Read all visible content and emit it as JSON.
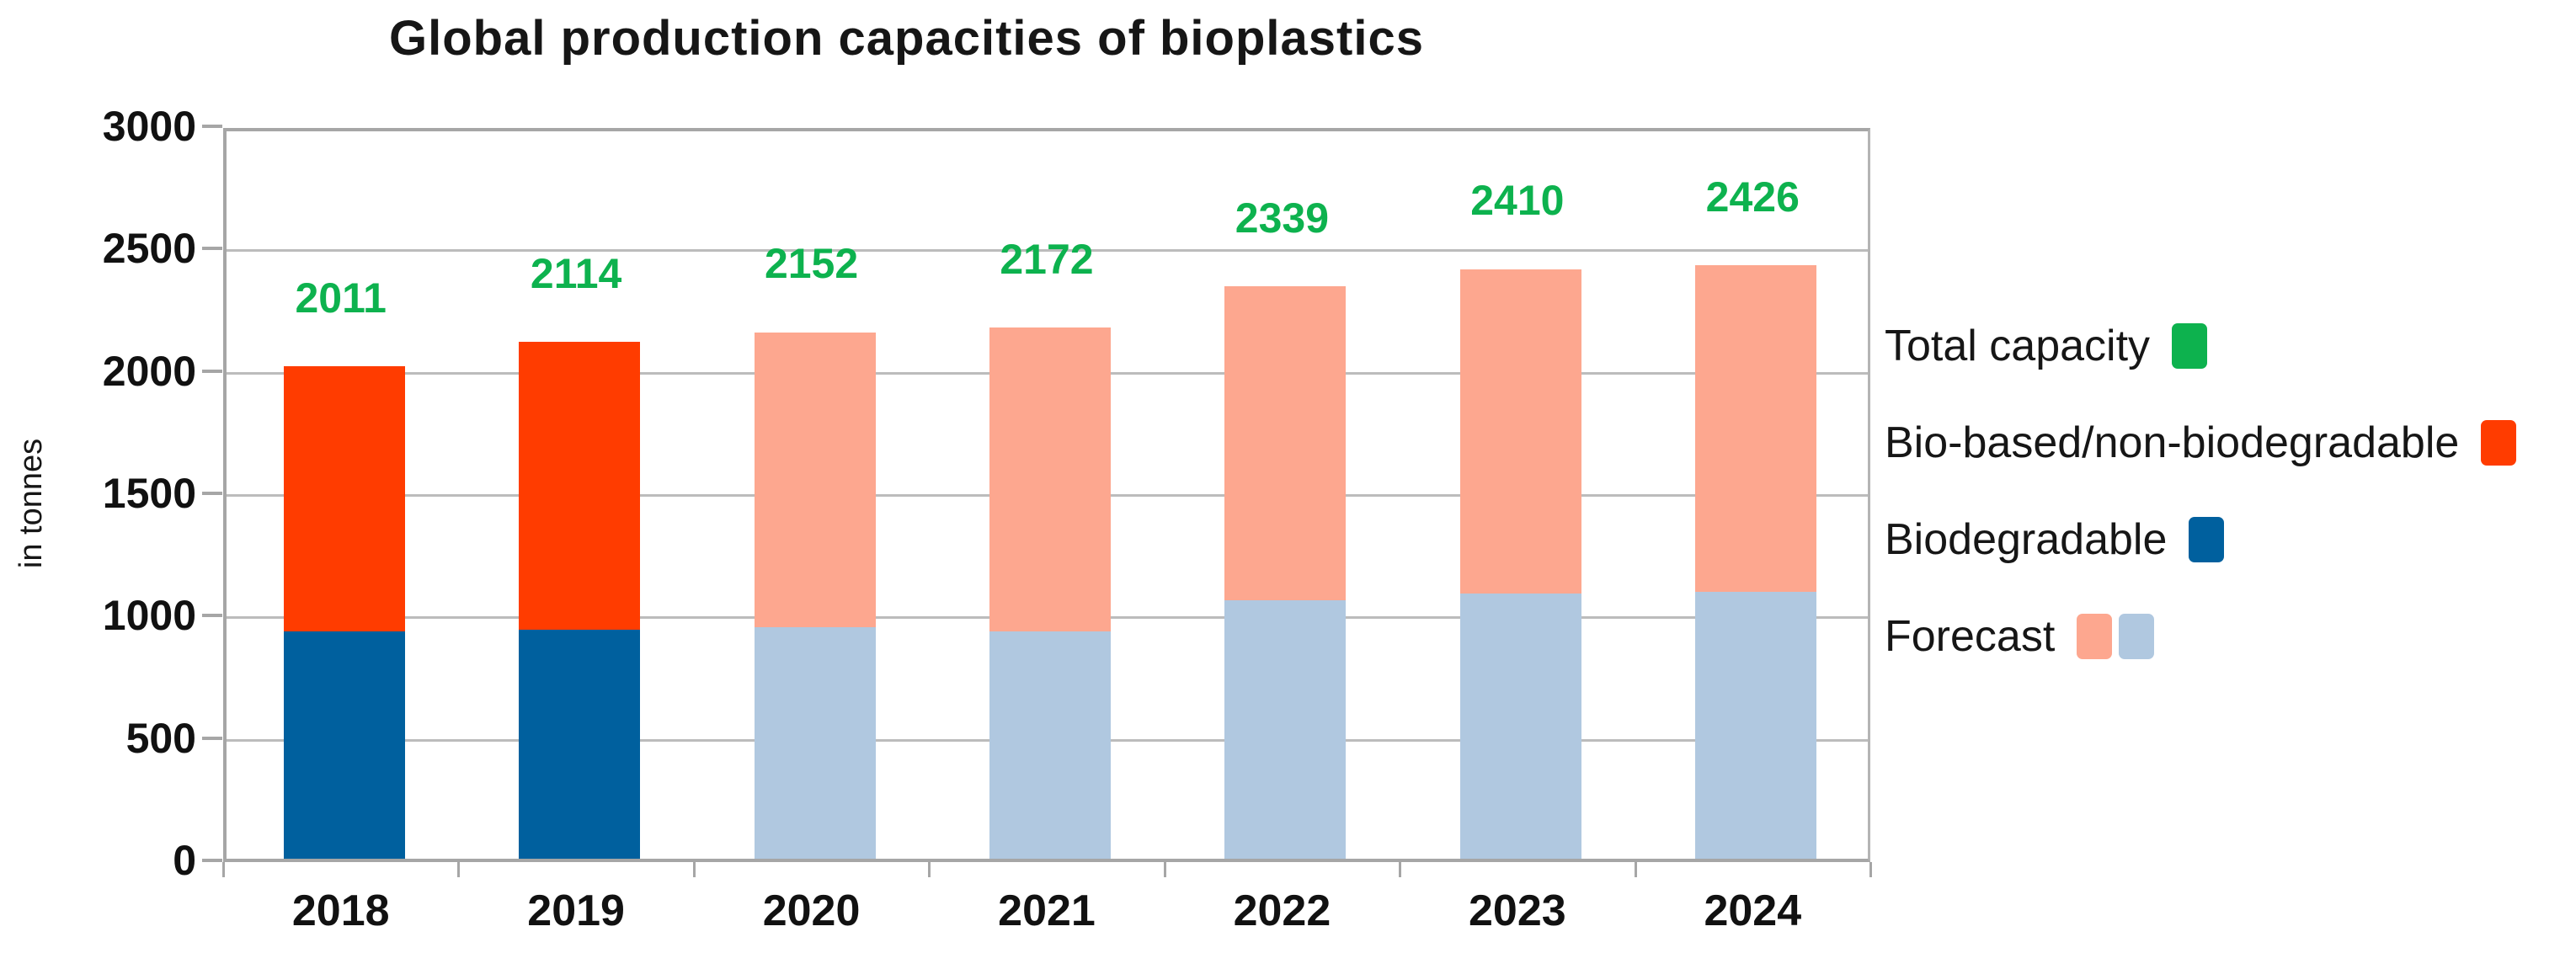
{
  "title": "Global production capacities of bioplastics",
  "colors": {
    "total_green": "#0db24e",
    "bio_based_orange": "#ff3c00",
    "biodegradable_blue": "#00609e",
    "forecast_salmon": "#fda78f",
    "forecast_light_blue": "#b0c8e0",
    "gridline": "#bcbcbc",
    "frame": "#a6a6a6",
    "text": "#111111"
  },
  "legend": {
    "items": [
      {
        "label": "Total capacity",
        "swatches": [
          "total_green"
        ]
      },
      {
        "label": "Bio-based/non-biodegradable",
        "swatches": [
          "bio_based_orange"
        ]
      },
      {
        "label": "Biodegradable",
        "swatches": [
          "biodegradable_blue"
        ]
      },
      {
        "label": "Forecast",
        "swatches": [
          "forecast_salmon",
          "forecast_light_blue"
        ]
      }
    ]
  },
  "chart_data": {
    "type": "bar",
    "stacked": true,
    "title": "Global production capacities of bioplastics",
    "ylabel": "in tonnes",
    "ylim": [
      0,
      3000
    ],
    "yticks": [
      0,
      500,
      1000,
      1500,
      2000,
      2500,
      3000
    ],
    "grid": "horizontal",
    "legend_position": "right",
    "categories": [
      "2018",
      "2019",
      "2020",
      "2021",
      "2022",
      "2023",
      "2024"
    ],
    "series": [
      {
        "name": "Biodegradable",
        "values": [
          930,
          935,
          945,
          930,
          1055,
          1085,
          1090
        ]
      },
      {
        "name": "Bio-based/non-biodegradable",
        "values": [
          1081,
          1179,
          1207,
          1242,
          1284,
          1325,
          1336
        ]
      }
    ],
    "totals": [
      2011,
      2114,
      2152,
      2172,
      2339,
      2410,
      2426
    ],
    "totals_series_name": "Total capacity",
    "forecast_categories": [
      "2020",
      "2021",
      "2022",
      "2023",
      "2024"
    ]
  }
}
